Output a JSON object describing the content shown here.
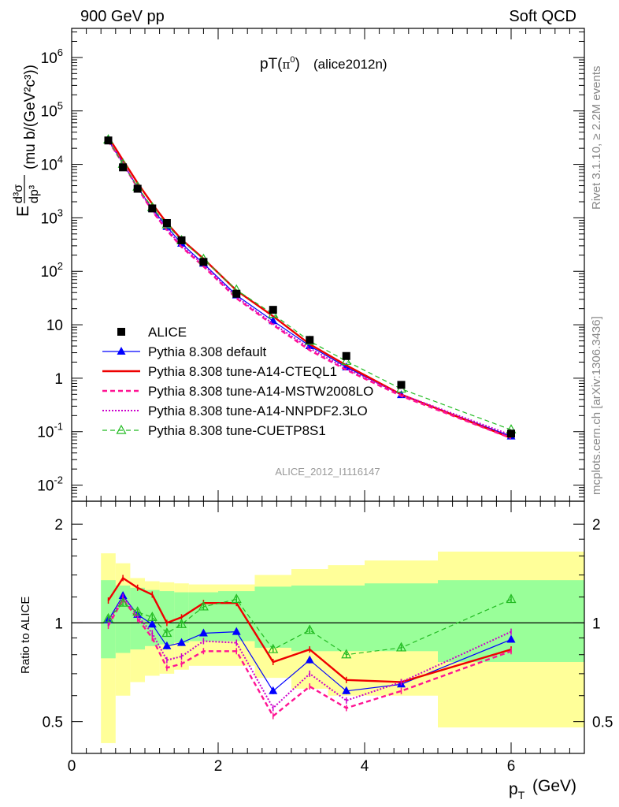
{
  "header": {
    "left": "900 GeV pp",
    "right": "Soft QCD",
    "title_main": "pT(",
    "title_sym": "π",
    "title_sup": "0",
    "title_close": ")",
    "title_tag": "(alice2012n)",
    "analysis_id": "ALICE_2012_I1116147"
  },
  "side": {
    "rivet": "Rivet 3.1.10, ≥ 2.2M events",
    "mcplots": "mcplots.cern.ch [arXiv:1306.3436]"
  },
  "axes": {
    "ylabel_E": "E",
    "ylabel_num": "d³σ",
    "ylabel_den": "dp³",
    "ylabel_units": "(mu b/(GeV²c³))",
    "xlabel_main": "p",
    "xlabel_sub": "T",
    "xlabel_units": "(GeV)",
    "ratio_ylabel": "Ratio to ALICE",
    "x_ticks": [
      "0",
      "2",
      "4",
      "6"
    ],
    "top_y_ticks": [
      "10",
      "10",
      "1",
      "10",
      "10",
      "10",
      "10",
      "10",
      "10"
    ],
    "top_y_tick_exps": [
      "-2",
      "-1",
      "",
      "",
      "2",
      "3",
      "4",
      "5",
      "6"
    ],
    "ratio_y_ticks": [
      "0.5",
      "1",
      "2"
    ]
  },
  "colors": {
    "data": "#000000",
    "default": "#0000ff",
    "a14_cteq": "#ee0000",
    "a14_mstw": "#ff1493",
    "a14_nnpdf": "#cc00cc",
    "cuetp8s1": "#22bb22",
    "band_yellow": "#ffff99",
    "band_green": "#99ff99"
  },
  "chart_data": {
    "type": "line",
    "x_label": "pT (GeV)",
    "y_label": "E d³σ/dp³ (mu b/(GeV²c³))",
    "xlim": [
      0,
      7
    ],
    "ylim": [
      0.005,
      3500000
    ],
    "y_scale": "log",
    "ratio_ylim": [
      0.4,
      2.35
    ],
    "ratio_y_scale": "log",
    "legend_position": "bottom-left",
    "x": [
      0.5,
      0.7,
      0.9,
      1.1,
      1.3,
      1.5,
      1.8,
      2.25,
      2.75,
      3.25,
      3.75,
      4.5,
      6.0
    ],
    "bin_edges": [
      0.4,
      0.6,
      0.8,
      1.0,
      1.2,
      1.4,
      1.6,
      2.0,
      2.5,
      3.0,
      3.5,
      4.0,
      5.0,
      7.0
    ],
    "series": [
      {
        "name": "ALICE",
        "key": "data",
        "style": "square",
        "values": [
          28000,
          8800,
          3500,
          1500,
          800,
          380,
          150,
          38,
          19,
          5.2,
          2.6,
          0.75,
          0.092
        ],
        "band_stat_lo": [
          0.78,
          0.81,
          0.83,
          0.85,
          0.86,
          0.87,
          0.88,
          0.88,
          0.84,
          0.82,
          0.82,
          0.82,
          0.76
        ],
        "band_stat_hi": [
          1.35,
          1.3,
          1.28,
          1.26,
          1.25,
          1.24,
          1.24,
          1.25,
          1.29,
          1.3,
          1.3,
          1.32,
          1.35
        ],
        "band_tot_lo": [
          0.43,
          0.6,
          0.66,
          0.69,
          0.7,
          0.72,
          0.74,
          0.74,
          0.68,
          0.63,
          0.6,
          0.6,
          0.48
        ],
        "band_tot_hi": [
          1.63,
          1.52,
          1.37,
          1.34,
          1.33,
          1.32,
          1.31,
          1.31,
          1.4,
          1.46,
          1.5,
          1.55,
          1.65
        ]
      },
      {
        "name": "Pythia 8.308 default",
        "key": "default",
        "style": "solid-triangle",
        "ratio": [
          1.02,
          1.21,
          1.06,
          0.99,
          0.85,
          0.87,
          0.93,
          0.94,
          0.62,
          0.77,
          0.62,
          0.65,
          0.89
        ]
      },
      {
        "name": "Pythia 8.308 tune-A14-CTEQL1",
        "key": "a14_cteq",
        "style": "solid",
        "ratio": [
          1.17,
          1.37,
          1.28,
          1.22,
          1.0,
          1.04,
          1.15,
          1.15,
          0.76,
          0.83,
          0.67,
          0.66,
          0.83
        ]
      },
      {
        "name": "Pythia 8.308 tune-A14-MSTW2008LO",
        "key": "a14_mstw",
        "style": "dashed",
        "ratio": [
          0.98,
          1.18,
          1.03,
          0.9,
          0.73,
          0.75,
          0.82,
          0.82,
          0.52,
          0.64,
          0.55,
          0.62,
          0.82
        ]
      },
      {
        "name": "Pythia 8.308 tune-A14-NNPDF2.3LO",
        "key": "a14_nnpdf",
        "style": "dotted",
        "ratio": [
          1.0,
          1.2,
          1.05,
          0.93,
          0.77,
          0.79,
          0.88,
          0.87,
          0.55,
          0.7,
          0.58,
          0.66,
          0.94
        ]
      },
      {
        "name": "Pythia 8.308 tune-CUETP8S1",
        "key": "cuetp8s1",
        "style": "dashed-open-triangle",
        "ratio": [
          1.03,
          1.15,
          1.08,
          1.04,
          0.93,
          0.99,
          1.12,
          1.18,
          0.83,
          0.95,
          0.8,
          0.84,
          1.18
        ]
      }
    ]
  }
}
